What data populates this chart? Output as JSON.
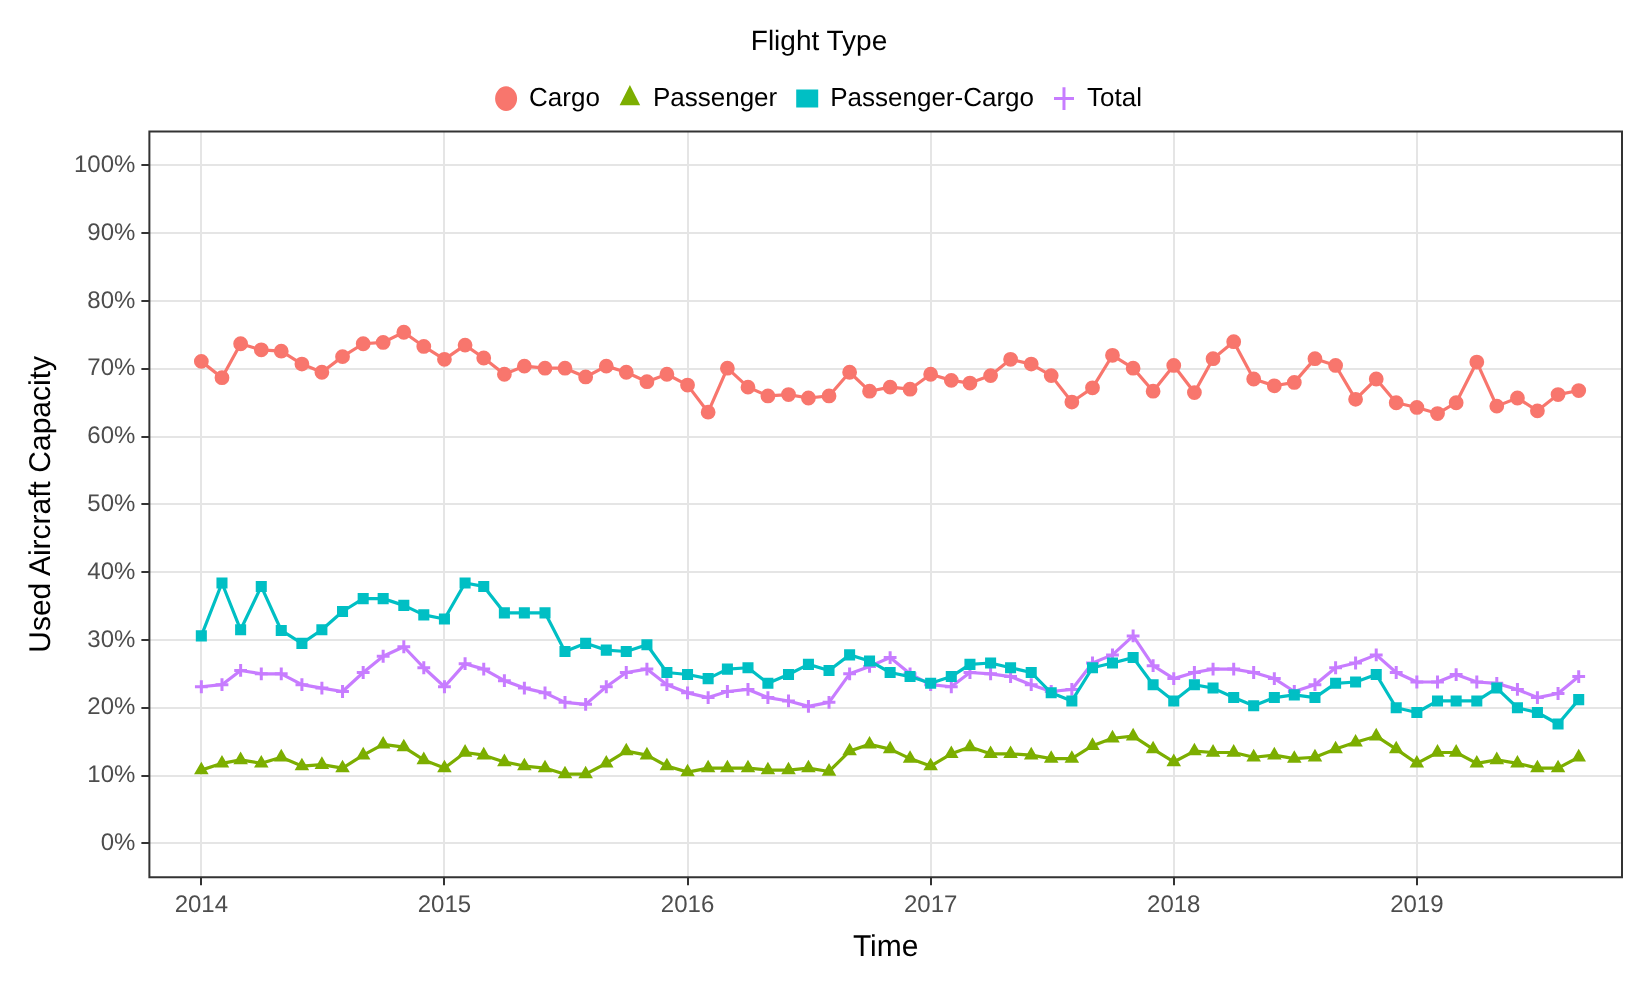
{
  "chart_data": {
    "type": "line",
    "xlabel": "Time",
    "ylabel": "Used Aircraft Capacity",
    "legend_title": "Flight Type",
    "legend": "top",
    "grid": true,
    "x": [
      "2014-01",
      "2014-02",
      "2014-03",
      "2014-04",
      "2014-05",
      "2014-06",
      "2014-07",
      "2014-08",
      "2014-09",
      "2014-10",
      "2014-11",
      "2014-12",
      "2015-01",
      "2015-02",
      "2015-03",
      "2015-04",
      "2015-05",
      "2015-06",
      "2015-07",
      "2015-08",
      "2015-09",
      "2015-10",
      "2015-11",
      "2015-12",
      "2016-01",
      "2016-02",
      "2016-03",
      "2016-04",
      "2016-05",
      "2016-06",
      "2016-07",
      "2016-08",
      "2016-09",
      "2016-10",
      "2016-11",
      "2016-12",
      "2017-01",
      "2017-02",
      "2017-03",
      "2017-04",
      "2017-05",
      "2017-06",
      "2017-07",
      "2017-08",
      "2017-09",
      "2017-10",
      "2017-11",
      "2017-12",
      "2018-01",
      "2018-02",
      "2018-03",
      "2018-04",
      "2018-05",
      "2018-06",
      "2018-07",
      "2018-08",
      "2018-09",
      "2018-10",
      "2018-11",
      "2018-12",
      "2019-01",
      "2019-02",
      "2019-03",
      "2019-04",
      "2019-05",
      "2019-06",
      "2019-07",
      "2019-08",
      "2019-09"
    ],
    "xlim": [
      "2013-10-15",
      "2019-11-05"
    ],
    "xticks": [
      "2014",
      "2015",
      "2016",
      "2017",
      "2018",
      "2019"
    ],
    "ylim": [
      -5,
      105
    ],
    "yticks": [
      {
        "value": 0,
        "label": "0%"
      },
      {
        "value": 10,
        "label": "10%"
      },
      {
        "value": 20,
        "label": "20%"
      },
      {
        "value": 30,
        "label": "30%"
      },
      {
        "value": 40,
        "label": "40%"
      },
      {
        "value": 50,
        "label": "50%"
      },
      {
        "value": 60,
        "label": "60%"
      },
      {
        "value": 70,
        "label": "70%"
      },
      {
        "value": 80,
        "label": "80%"
      },
      {
        "value": 90,
        "label": "90%"
      },
      {
        "value": 100,
        "label": "100%"
      }
    ],
    "series": [
      {
        "name": "Cargo",
        "color": "#f8766d",
        "marker": "circle",
        "values": [
          71.1,
          68.7,
          73.7,
          72.8,
          72.6,
          70.7,
          69.5,
          71.8,
          73.7,
          73.9,
          75.4,
          73.3,
          71.4,
          73.5,
          71.6,
          69.2,
          70.4,
          70.1,
          70.1,
          68.8,
          70.4,
          69.5,
          68.1,
          69.2,
          67.6,
          63.6,
          70.1,
          67.3,
          66,
          66.2,
          65.7,
          66,
          69.5,
          66.7,
          67.3,
          67,
          69.2,
          68.3,
          67.9,
          69,
          71.4,
          70.7,
          69,
          65.1,
          67.2,
          72,
          70.1,
          66.7,
          70.5,
          66.5,
          71.5,
          74,
          68.5,
          67.5,
          68,
          71.5,
          70.5,
          65.5,
          68.5,
          65,
          64.3,
          63.4,
          65,
          71,
          64.5,
          65.7,
          63.8,
          66.2,
          66.8
        ]
      },
      {
        "name": "Passenger",
        "color": "#7cae00",
        "marker": "triangle",
        "values": [
          10.8,
          11.8,
          12.3,
          11.8,
          12.7,
          11.4,
          11.6,
          11.1,
          13,
          14.6,
          14.2,
          12.3,
          11.1,
          13.4,
          13,
          12,
          11.4,
          11.1,
          10.2,
          10.2,
          11.8,
          13.6,
          13,
          11.4,
          10.5,
          11.1,
          11.1,
          11.1,
          10.8,
          10.8,
          11.1,
          10.6,
          13.6,
          14.6,
          13.9,
          12.5,
          11.4,
          13.2,
          14.2,
          13.2,
          13.2,
          13,
          12.5,
          12.5,
          14.4,
          15.5,
          15.8,
          13.9,
          12,
          13.6,
          13.4,
          13.4,
          12.7,
          13,
          12.5,
          12.7,
          13.9,
          14.9,
          15.8,
          13.9,
          11.8,
          13.4,
          13.4,
          11.8,
          12.3,
          11.8,
          11.1,
          11.1,
          12.7
        ]
      },
      {
        "name": "Passenger-Cargo",
        "color": "#00bfc4",
        "marker": "square",
        "values": [
          30.6,
          38.4,
          31.5,
          37.9,
          31.4,
          29.5,
          31.5,
          34.2,
          36.1,
          36.1,
          35.1,
          33.7,
          33.1,
          38.4,
          37.9,
          34,
          34,
          34,
          28.3,
          29.5,
          28.5,
          28.3,
          29.3,
          25.2,
          24.9,
          24.3,
          25.7,
          25.9,
          23.6,
          24.9,
          26.4,
          25.5,
          27.8,
          26.9,
          25.2,
          24.6,
          23.6,
          24.6,
          26.4,
          26.6,
          25.9,
          25.2,
          22.2,
          21,
          25.9,
          26.6,
          27.4,
          23.4,
          21,
          23.4,
          22.9,
          21.5,
          20.3,
          21.5,
          21.9,
          21.5,
          23.6,
          23.8,
          24.9,
          20,
          19.3,
          21,
          21,
          21,
          22.9,
          20,
          19.3,
          17.6,
          21.2
        ]
      },
      {
        "name": "Total",
        "color": "#c77cff",
        "marker": "cross",
        "values": [
          23.1,
          23.4,
          25.5,
          25,
          25,
          23.4,
          22.9,
          22.4,
          25.2,
          27.6,
          29,
          25.9,
          23.1,
          26.5,
          25.7,
          24,
          22.9,
          22.2,
          20.8,
          20.5,
          23.1,
          25.2,
          25.7,
          23.4,
          22.2,
          21.5,
          22.4,
          22.7,
          21.5,
          21,
          20.2,
          20.8,
          25,
          26.1,
          27.4,
          25,
          23.4,
          23.1,
          25.2,
          25,
          24.6,
          23.4,
          22.4,
          22.7,
          26.6,
          27.8,
          30.6,
          26.2,
          24.3,
          25.2,
          25.7,
          25.7,
          25.2,
          24.3,
          22.4,
          23.4,
          25.9,
          26.6,
          27.8,
          25.2,
          23.8,
          23.8,
          24.9,
          23.8,
          23.6,
          22.7,
          21.5,
          22.1,
          24.6
        ]
      }
    ]
  }
}
